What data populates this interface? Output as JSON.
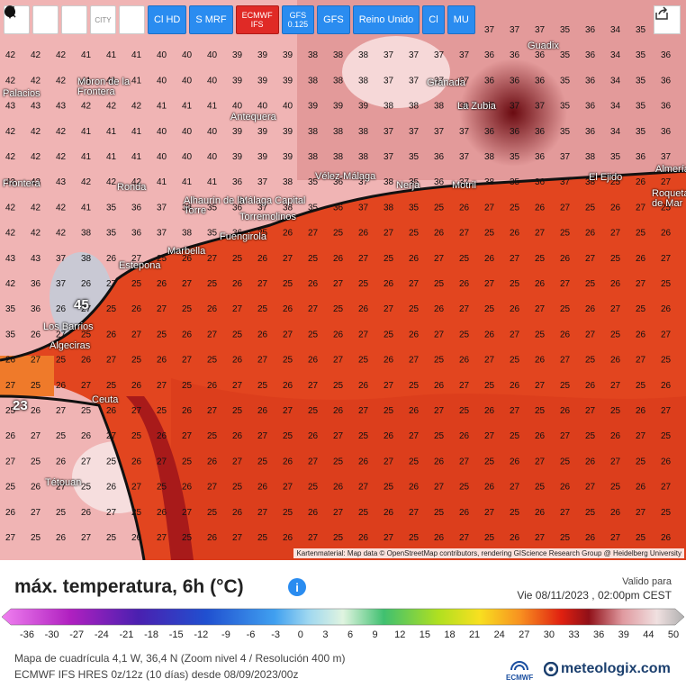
{
  "toolbar": {
    "refresh": "refresh-icon",
    "location": "location-pin-icon",
    "zoom": "zoom-icon",
    "city_label": "CITY",
    "dot": "dot-icon",
    "btn_cl_hd": "Cl HD",
    "btn_s_mrf": "S MRF",
    "btn_ecmwf_top": "ECMWF",
    "btn_ecmwf_bot": "IFS",
    "btn_gfs_top": "GFS",
    "btn_gfs_bot": "0.125",
    "btn_gfs": "GFS",
    "btn_reino": "Reino Unido",
    "btn_cl": "Cl",
    "btn_mu": "MU",
    "share": "share-icon"
  },
  "places": [
    "Guadix",
    "Granada",
    "La Zubia",
    "Antequera",
    "Vélez-Málaga",
    "Nerja",
    "Motril",
    "El Ejido",
    "Málaga Capital",
    "Alhaurín de la Torre",
    "Torremolinos",
    "Fuengirola",
    "Marbella",
    "Estepona",
    "Ronda",
    "Algeciras",
    "Los Barrios",
    "Ceuta",
    "Tétouan",
    "Palacios",
    "Frontera",
    "Moron de la Frontera",
    "Almería",
    "Roquetas de Mar"
  ],
  "big_values": {
    "a": "45",
    "b": "23"
  },
  "attribution": "Kartenmaterial: Map data © OpenStreetMap contributors, rendering GIScience Research Group @ Heidelberg University",
  "legend": {
    "title": "máx. temperatura, 6h (°C)",
    "valid_label": "Valido para",
    "valid_time": "Vie 08/11/2023 , 02:00pm CEST",
    "ticks": [
      "-36",
      "-30",
      "-27",
      "-24",
      "-21",
      "-18",
      "-15",
      "-12",
      "-9",
      "-6",
      "-3",
      "0",
      "3",
      "6",
      "9",
      "12",
      "15",
      "18",
      "21",
      "24",
      "27",
      "30",
      "33",
      "36",
      "39",
      "44",
      "50"
    ],
    "footer1": "Mapa de cuadrícula 4,1 W, 36,4 N (Zoom nivel 4 / Resolución 400 m)",
    "footer2": "ECMWF IFS HRES 0z/12z (10 días) desde 08/09/2023/00z",
    "ecmwf_logo": "ECMWF",
    "brand": "meteologix.com"
  }
}
